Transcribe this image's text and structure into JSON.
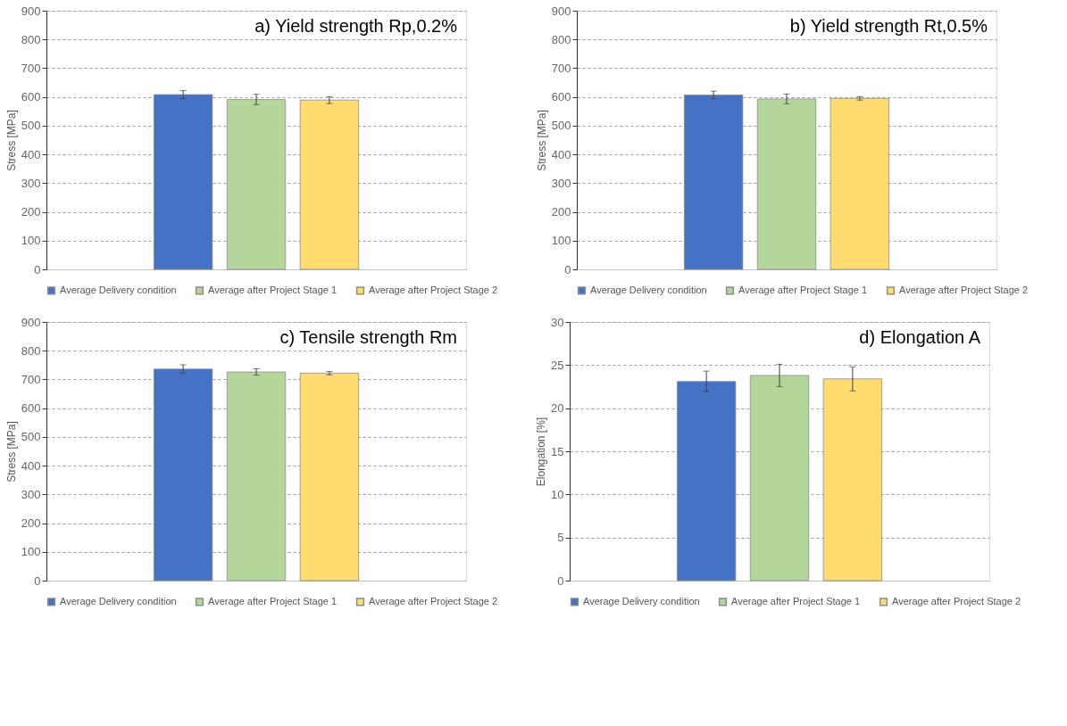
{
  "chart_data": [
    {
      "type": "bar",
      "title": "a) Yield strength Rp,0.2%",
      "ylabel": "Stress [MPa]",
      "categories": [
        null
      ],
      "ylim": [
        0,
        900
      ],
      "yticks": [
        0,
        100,
        200,
        300,
        400,
        500,
        600,
        700,
        800,
        900
      ],
      "grid": "y",
      "legend": "bottom",
      "tick_labels": "y",
      "series": [
        {
          "name": "Average Delivery condition",
          "color": "#4472c4",
          "values": [
            608
          ],
          "errors": [
            14
          ]
        },
        {
          "name": "Average after Project Stage 1",
          "color": "#b4d69b",
          "values": [
            591
          ],
          "errors": [
            18
          ]
        },
        {
          "name": "Average after Project Stage 2",
          "color": "#ffdb70",
          "values": [
            589
          ],
          "errors": [
            12
          ]
        }
      ]
    },
    {
      "type": "bar",
      "title": "b) Yield strength Rt,0.5%",
      "ylabel": "Stress [MPa]",
      "categories": [
        null
      ],
      "ylim": [
        0,
        900
      ],
      "yticks": [
        0,
        100,
        200,
        300,
        400,
        500,
        600,
        700,
        800,
        900
      ],
      "grid": "y",
      "legend": "bottom",
      "tick_labels": "y",
      "series": [
        {
          "name": "Average Delivery condition",
          "color": "#4472c4",
          "values": [
            607
          ],
          "errors": [
            13
          ]
        },
        {
          "name": "Average after Project Stage 1",
          "color": "#b4d69b",
          "values": [
            593
          ],
          "errors": [
            17
          ]
        },
        {
          "name": "Average after Project Stage 2",
          "color": "#ffdb70",
          "values": [
            595
          ],
          "errors": [
            6
          ]
        }
      ]
    },
    {
      "type": "bar",
      "title": "c) Tensile strength Rm",
      "ylabel": "Stress [MPa]",
      "categories": [
        null
      ],
      "ylim": [
        0,
        900
      ],
      "yticks": [
        0,
        100,
        200,
        300,
        400,
        500,
        600,
        700,
        800,
        900
      ],
      "grid": "y",
      "legend": "bottom",
      "tick_labels": "y",
      "series": [
        {
          "name": "Average Delivery condition",
          "color": "#4472c4",
          "values": [
            736
          ],
          "errors": [
            15
          ]
        },
        {
          "name": "Average after Project Stage 1",
          "color": "#b4d69b",
          "values": [
            726
          ],
          "errors": [
            11
          ]
        },
        {
          "name": "Average after Project Stage 2",
          "color": "#ffdb70",
          "values": [
            722
          ],
          "errors": [
            6
          ]
        }
      ]
    },
    {
      "type": "bar",
      "title": "d) Elongation A",
      "ylabel": "Elongation [%]",
      "categories": [
        null
      ],
      "ylim": [
        0,
        30
      ],
      "yticks": [
        0,
        5,
        10,
        15,
        20,
        25,
        30
      ],
      "grid": "y",
      "legend": "bottom",
      "tick_labels": "y",
      "series": [
        {
          "name": "Average Delivery condition",
          "color": "#4472c4",
          "values": [
            23.1
          ],
          "errors": [
            1.2
          ]
        },
        {
          "name": "Average after Project Stage 1",
          "color": "#b4d69b",
          "values": [
            23.8
          ],
          "errors": [
            1.3
          ]
        },
        {
          "name": "Average after Project Stage 2",
          "color": "#ffdb70",
          "values": [
            23.4
          ],
          "errors": [
            1.4
          ]
        }
      ]
    }
  ]
}
